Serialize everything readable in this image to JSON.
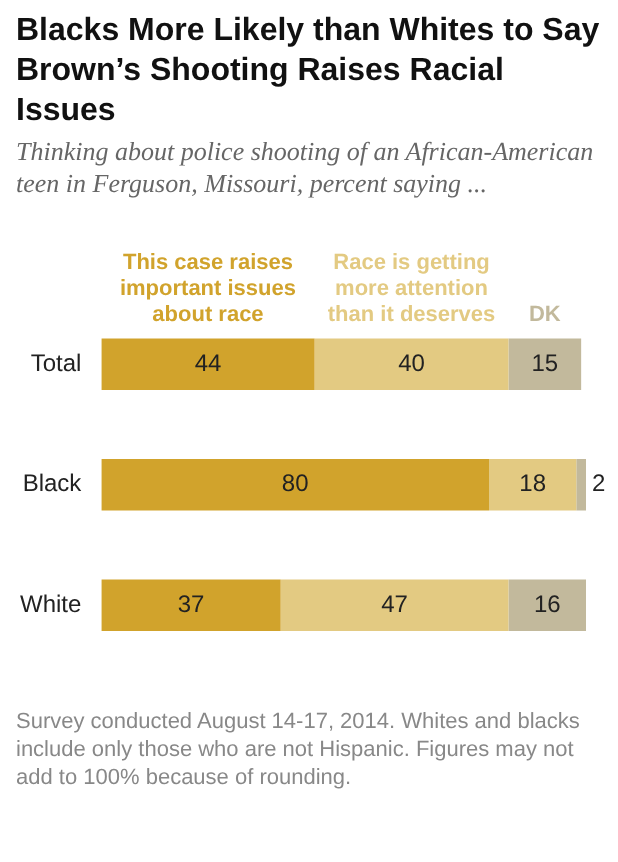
{
  "chart_data": {
    "type": "bar",
    "orientation": "horizontal",
    "stacked": true,
    "title": "Blacks More Likely than Whites to Say Brown’s Shooting Raises Racial Issues",
    "subtitle": "Thinking about police shooting of an African-American teen in Ferguson, Missouri, percent saying ...",
    "categories": [
      "Total",
      "Black",
      "White"
    ],
    "series": [
      {
        "name": "This case raises important issues about race",
        "color": "#d1a32c",
        "values": [
          44,
          80,
          37
        ]
      },
      {
        "name": "Race is getting more attention than it deserves",
        "color": "#e3ca82",
        "values": [
          40,
          18,
          47
        ]
      },
      {
        "name": "DK",
        "color": "#c2b99c",
        "values": [
          15,
          2,
          16
        ]
      }
    ],
    "data_labels": true,
    "legend": "top",
    "grid": false,
    "annotations": [
      "Survey conducted August 14-17, 2014. Whites and blacks include only those who are not Hispanic. Figures may not add to 100% because of rounding."
    ]
  }
}
